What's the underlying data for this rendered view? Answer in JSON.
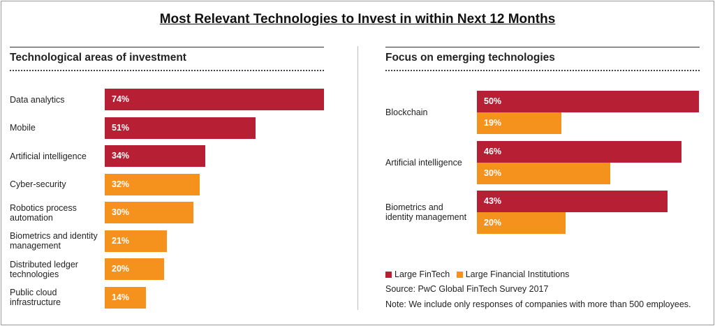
{
  "title": "Most Relevant Technologies to Invest in within Next 12 Months",
  "colors": {
    "large_fintech": "#b71f34",
    "large_fi": "#f5921e"
  },
  "chart_data": [
    {
      "type": "bar",
      "orientation": "horizontal",
      "title": "Technological areas of investment",
      "categories": [
        "Data analytics",
        "Mobile",
        "Artificial intelligence",
        "Cyber-security",
        "Robotics process automation",
        "Biometrics and identity management",
        "Distributed ledger technologies",
        "Public cloud infrastructure"
      ],
      "category_lines": [
        [
          "Data analytics"
        ],
        [
          "Mobile"
        ],
        [
          "Artificial intelligence"
        ],
        [
          "Cyber-security"
        ],
        [
          "Robotics process",
          "automation"
        ],
        [
          "Biometrics and identity",
          "management"
        ],
        [
          "Distributed ledger",
          "technologies"
        ],
        [
          "Public cloud",
          "infrastructure"
        ]
      ],
      "values": [
        74,
        51,
        34,
        32,
        30,
        21,
        20,
        14
      ],
      "value_labels": [
        "74%",
        "51%",
        "34%",
        "32%",
        "30%",
        "21%",
        "20%",
        "14%"
      ],
      "bar_colors": [
        "#b71f34",
        "#b71f34",
        "#b71f34",
        "#f5921e",
        "#f5921e",
        "#f5921e",
        "#f5921e",
        "#f5921e"
      ],
      "xlim": [
        0,
        74
      ],
      "grid": false
    },
    {
      "type": "bar",
      "orientation": "horizontal",
      "title": "Focus on emerging technologies",
      "categories": [
        "Blockchain",
        "Artificial intelligence",
        "Biometrics and identity management"
      ],
      "category_lines": [
        [
          "Blockchain"
        ],
        [
          "Artificial intelligence"
        ],
        [
          "Biometrics and",
          "identity management"
        ]
      ],
      "series": [
        {
          "name": "Large FinTech",
          "color": "#b71f34",
          "values": [
            50,
            46,
            43
          ],
          "value_labels": [
            "50%",
            "46%",
            "43%"
          ]
        },
        {
          "name": "Large Financial Institutions",
          "color": "#f5921e",
          "values": [
            19,
            30,
            20
          ],
          "value_labels": [
            "19%",
            "30%",
            "20%"
          ]
        }
      ],
      "xlim": [
        0,
        50
      ],
      "legend_position": "bottom-left",
      "grid": false
    }
  ],
  "source": "Source: PwC Global FinTech Survey 2017",
  "note": "Note: We include only responses of companies with more than 500 employees."
}
